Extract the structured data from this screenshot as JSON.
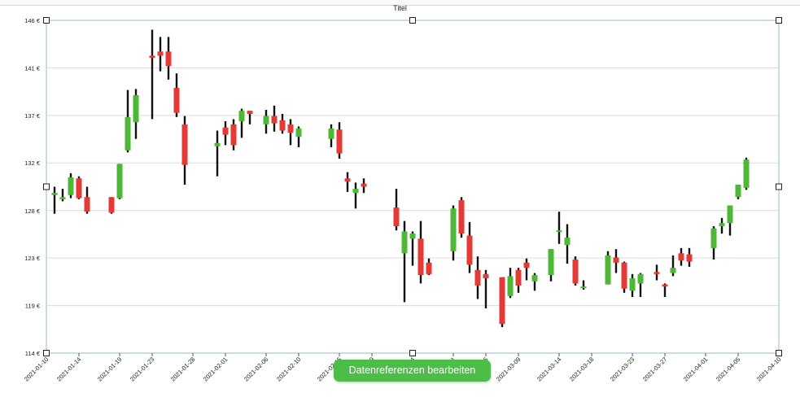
{
  "chart_data": {
    "type": "candlestick",
    "title": "Titel",
    "xlabel": "",
    "ylabel": "",
    "ylim": [
      114,
      146
    ],
    "y_ticks": [
      "114 €",
      "119 €",
      "123 €",
      "128 €",
      "132 €",
      "137 €",
      "141 €",
      "146 €"
    ],
    "y_tick_values": [
      114,
      118.57,
      123.14,
      127.71,
      132.29,
      136.86,
      141.43,
      146
    ],
    "x_ticks": [
      "2021-01-10",
      "2021-01-14",
      "2021-01-19",
      "2021-01-23",
      "2021-01-28",
      "2021-02-01",
      "2021-02-06",
      "2021-02-10",
      "2021-02-15",
      "2021-02-19",
      "2021-02-24",
      "2021-03-01",
      "2021-03-05",
      "2021-03-09",
      "2021-03-14",
      "2021-03-18",
      "2021-03-23",
      "2021-03-27",
      "2021-04-01",
      "2021-04-05",
      "2021-04-10"
    ],
    "up_color": "#4cb836",
    "down_color": "#e53935",
    "grid": true,
    "candles": [
      {
        "date": "2021-01-11",
        "open": 129.2,
        "close": 129.4,
        "high": 130.0,
        "low": 127.4
      },
      {
        "date": "2021-01-12",
        "open": 128.8,
        "close": 129.0,
        "high": 129.8,
        "low": 128.6
      },
      {
        "date": "2021-01-13",
        "open": 129.2,
        "close": 130.9,
        "high": 131.3,
        "low": 128.9
      },
      {
        "date": "2021-01-14",
        "open": 130.8,
        "close": 128.9,
        "high": 131.0,
        "low": 128.8
      },
      {
        "date": "2021-01-15",
        "open": 129.0,
        "close": 127.6,
        "high": 130.0,
        "low": 127.4
      },
      {
        "date": "2021-01-18",
        "open": 129.0,
        "close": 127.5,
        "high": 129.0,
        "low": 127.4
      },
      {
        "date": "2021-01-19",
        "open": 128.9,
        "close": 132.2,
        "high": 132.2,
        "low": 128.8
      },
      {
        "date": "2021-01-20",
        "open": 133.5,
        "close": 136.7,
        "high": 139.3,
        "low": 133.3
      },
      {
        "date": "2021-01-21",
        "open": 136.2,
        "close": 138.8,
        "high": 139.4,
        "low": 134.6
      },
      {
        "date": "2021-01-23",
        "open": 142.6,
        "close": 142.4,
        "high": 145.1,
        "low": 136.5
      },
      {
        "date": "2021-01-24",
        "open": 143.0,
        "close": 142.6,
        "high": 144.4,
        "low": 141.1
      },
      {
        "date": "2021-01-25",
        "open": 143.0,
        "close": 141.6,
        "high": 144.4,
        "low": 140.3
      },
      {
        "date": "2021-01-26",
        "open": 139.5,
        "close": 137.1,
        "high": 140.9,
        "low": 136.7
      },
      {
        "date": "2021-01-27",
        "open": 136.0,
        "close": 132.1,
        "high": 136.8,
        "low": 130.2
      },
      {
        "date": "2021-01-31",
        "open": 133.9,
        "close": 134.2,
        "high": 135.4,
        "low": 131.0
      },
      {
        "date": "2021-02-01",
        "open": 135.7,
        "close": 135.0,
        "high": 136.3,
        "low": 134.0
      },
      {
        "date": "2021-02-02",
        "open": 136.0,
        "close": 134.0,
        "high": 136.5,
        "low": 133.5
      },
      {
        "date": "2021-02-03",
        "open": 136.3,
        "close": 137.3,
        "high": 137.5,
        "low": 134.7
      },
      {
        "date": "2021-02-04",
        "open": 137.3,
        "close": 137.0,
        "high": 137.3,
        "low": 136.0
      },
      {
        "date": "2021-02-06",
        "open": 136.0,
        "close": 136.8,
        "high": 137.4,
        "low": 135.1
      },
      {
        "date": "2021-02-07",
        "open": 136.8,
        "close": 136.1,
        "high": 137.8,
        "low": 135.3
      },
      {
        "date": "2021-02-08",
        "open": 136.4,
        "close": 135.4,
        "high": 137.0,
        "low": 135.1
      },
      {
        "date": "2021-02-09",
        "open": 136.0,
        "close": 135.2,
        "high": 136.5,
        "low": 134.0
      },
      {
        "date": "2021-02-10",
        "open": 134.8,
        "close": 135.6,
        "high": 135.8,
        "low": 133.8
      },
      {
        "date": "2021-02-14",
        "open": 134.6,
        "close": 135.6,
        "high": 136.0,
        "low": 133.8
      },
      {
        "date": "2021-02-15",
        "open": 135.5,
        "close": 133.2,
        "high": 136.2,
        "low": 132.7
      },
      {
        "date": "2021-02-16",
        "open": 130.8,
        "close": 130.5,
        "high": 131.4,
        "low": 129.5
      },
      {
        "date": "2021-02-17",
        "open": 129.4,
        "close": 129.8,
        "high": 130.4,
        "low": 127.9
      },
      {
        "date": "2021-02-18",
        "open": 130.3,
        "close": 130.0,
        "high": 130.8,
        "low": 129.4
      },
      {
        "date": "2021-02-22",
        "open": 128.0,
        "close": 126.2,
        "high": 129.8,
        "low": 125.8
      },
      {
        "date": "2021-02-23",
        "open": 123.6,
        "close": 125.7,
        "high": 126.7,
        "low": 118.9
      },
      {
        "date": "2021-02-24",
        "open": 125.0,
        "close": 125.5,
        "high": 125.7,
        "low": 122.4
      },
      {
        "date": "2021-02-25",
        "open": 125.0,
        "close": 121.5,
        "high": 126.7,
        "low": 120.7
      },
      {
        "date": "2021-02-26",
        "open": 122.7,
        "close": 121.6,
        "high": 123.1,
        "low": 121.5
      },
      {
        "date": "2021-03-01",
        "open": 123.8,
        "close": 127.9,
        "high": 128.2,
        "low": 122.9
      },
      {
        "date": "2021-03-02",
        "open": 128.7,
        "close": 125.5,
        "high": 129.0,
        "low": 125.1
      },
      {
        "date": "2021-03-03",
        "open": 125.3,
        "close": 122.5,
        "high": 126.6,
        "low": 121.7
      },
      {
        "date": "2021-03-04",
        "open": 122.0,
        "close": 120.5,
        "high": 123.3,
        "low": 119.2
      },
      {
        "date": "2021-03-05",
        "open": 121.6,
        "close": 121.2,
        "high": 122.0,
        "low": 118.3
      },
      {
        "date": "2021-03-07",
        "open": 121.3,
        "close": 116.8,
        "high": 121.3,
        "low": 116.5
      },
      {
        "date": "2021-03-08",
        "open": 119.5,
        "close": 121.4,
        "high": 122.2,
        "low": 119.3
      },
      {
        "date": "2021-03-09",
        "open": 122.0,
        "close": 120.5,
        "high": 122.2,
        "low": 119.8
      },
      {
        "date": "2021-03-10",
        "open": 122.7,
        "close": 122.2,
        "high": 123.1,
        "low": 121.0
      },
      {
        "date": "2021-03-11",
        "open": 120.9,
        "close": 121.5,
        "high": 121.7,
        "low": 120.0
      },
      {
        "date": "2021-03-13",
        "open": 121.5,
        "close": 124.0,
        "high": 124.0,
        "low": 120.9
      },
      {
        "date": "2021-03-14",
        "open": 125.8,
        "close": 125.8,
        "high": 127.6,
        "low": 124.5
      },
      {
        "date": "2021-03-15",
        "open": 124.4,
        "close": 125.1,
        "high": 126.4,
        "low": 122.6
      },
      {
        "date": "2021-03-16",
        "open": 123.0,
        "close": 120.7,
        "high": 123.3,
        "low": 120.5
      },
      {
        "date": "2021-03-17",
        "open": 120.3,
        "close": 120.4,
        "high": 121.0,
        "low": 120.1
      },
      {
        "date": "2021-03-20",
        "open": 120.6,
        "close": 123.4,
        "high": 123.8,
        "low": 120.6
      },
      {
        "date": "2021-03-21",
        "open": 123.2,
        "close": 122.7,
        "high": 124.0,
        "low": 121.7
      },
      {
        "date": "2021-03-22",
        "open": 122.7,
        "close": 120.2,
        "high": 122.8,
        "low": 119.8
      },
      {
        "date": "2021-03-23",
        "open": 120.0,
        "close": 121.2,
        "high": 121.6,
        "low": 119.4
      },
      {
        "date": "2021-03-24",
        "open": 120.7,
        "close": 121.6,
        "high": 121.7,
        "low": 119.4
      },
      {
        "date": "2021-03-26",
        "open": 121.8,
        "close": 121.6,
        "high": 122.5,
        "low": 121.0
      },
      {
        "date": "2021-03-27",
        "open": 120.6,
        "close": 120.4,
        "high": 120.7,
        "low": 119.4
      },
      {
        "date": "2021-03-28",
        "open": 121.7,
        "close": 122.2,
        "high": 123.4,
        "low": 121.4
      },
      {
        "date": "2021-03-29",
        "open": 123.6,
        "close": 122.9,
        "high": 124.1,
        "low": 122.4
      },
      {
        "date": "2021-03-30",
        "open": 123.5,
        "close": 122.8,
        "high": 124.1,
        "low": 122.3
      },
      {
        "date": "2021-04-02",
        "open": 124.1,
        "close": 126.0,
        "high": 126.2,
        "low": 123.0
      },
      {
        "date": "2021-04-03",
        "open": 126.2,
        "close": 126.5,
        "high": 127.0,
        "low": 125.5
      },
      {
        "date": "2021-04-04",
        "open": 126.5,
        "close": 128.2,
        "high": 128.2,
        "low": 125.3
      },
      {
        "date": "2021-04-05",
        "open": 129.0,
        "close": 130.2,
        "high": 130.2,
        "low": 128.8
      },
      {
        "date": "2021-04-06",
        "open": 129.9,
        "close": 132.6,
        "high": 132.8,
        "low": 129.7
      }
    ]
  },
  "toolbar": {
    "edit_button_label": "Datenreferenzen bearbeiten"
  }
}
